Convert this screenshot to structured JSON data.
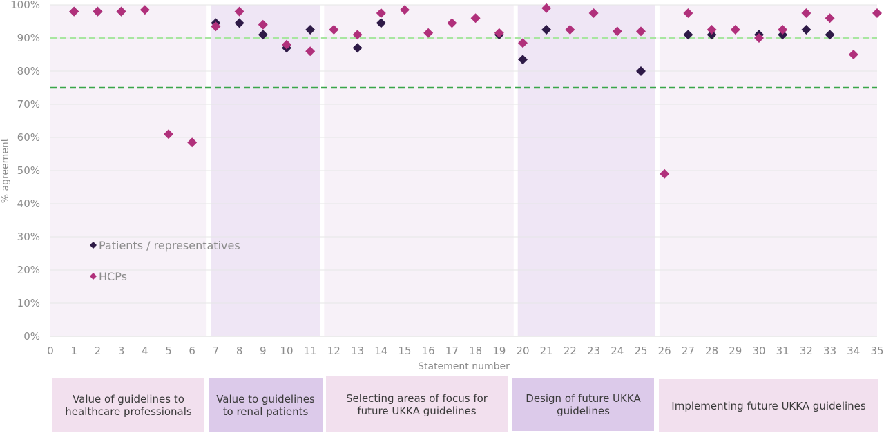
{
  "chart_data": {
    "type": "scatter",
    "xlabel": "Statement number",
    "ylabel": "% agreement",
    "xlim": [
      0,
      35
    ],
    "ylim": [
      0,
      100
    ],
    "x_ticks": [
      "0",
      "1",
      "2",
      "3",
      "4",
      "5",
      "6",
      "7",
      "8",
      "9",
      "10",
      "11",
      "12",
      "13",
      "14",
      "15",
      "16",
      "17",
      "18",
      "19",
      "20",
      "21",
      "22",
      "23",
      "24",
      "25",
      "26",
      "27",
      "28",
      "29",
      "30",
      "31",
      "32",
      "33",
      "34",
      "35"
    ],
    "y_ticks": [
      "0%",
      "10%",
      "20%",
      "30%",
      "40%",
      "50%",
      "60%",
      "70%",
      "80%",
      "90%",
      "100%"
    ],
    "legend_position": "left-middle",
    "series": [
      {
        "name": "Patients / representatives",
        "color": "#2e1a47",
        "marker": "diamond",
        "points": [
          [
            1,
            98
          ],
          [
            2,
            98
          ],
          [
            3,
            98
          ],
          [
            7,
            94.5
          ],
          [
            8,
            94.5
          ],
          [
            9,
            91
          ],
          [
            10,
            87
          ],
          [
            11,
            92.5
          ],
          [
            13,
            87
          ],
          [
            14,
            94.5
          ],
          [
            19,
            91
          ],
          [
            20,
            83.5
          ],
          [
            21,
            92.5
          ],
          [
            25,
            80
          ],
          [
            27,
            91
          ],
          [
            28,
            91
          ],
          [
            30,
            91
          ],
          [
            31,
            91
          ],
          [
            32,
            92.5
          ],
          [
            33,
            91
          ]
        ]
      },
      {
        "name": "HCPs",
        "color": "#b0307b",
        "marker": "diamond",
        "points": [
          [
            1,
            98
          ],
          [
            2,
            98
          ],
          [
            3,
            98
          ],
          [
            4,
            98.5
          ],
          [
            5,
            61
          ],
          [
            6,
            58.5
          ],
          [
            7,
            93.5
          ],
          [
            8,
            98
          ],
          [
            9,
            94
          ],
          [
            10,
            88
          ],
          [
            11,
            86
          ],
          [
            12,
            92.5
          ],
          [
            13,
            91
          ],
          [
            14,
            97.5
          ],
          [
            15,
            98.5
          ],
          [
            16,
            91.5
          ],
          [
            17,
            94.5
          ],
          [
            18,
            96
          ],
          [
            19,
            91.5
          ],
          [
            20,
            88.5
          ],
          [
            21,
            99
          ],
          [
            22,
            92.5
          ],
          [
            23,
            97.5
          ],
          [
            24,
            92
          ],
          [
            25,
            92
          ],
          [
            26,
            49
          ],
          [
            27,
            97.5
          ],
          [
            28,
            92.5
          ],
          [
            29,
            92.5
          ],
          [
            30,
            90
          ],
          [
            31,
            92.5
          ],
          [
            32,
            97.5
          ],
          [
            33,
            96
          ],
          [
            34,
            85
          ],
          [
            35,
            97.5
          ]
        ]
      }
    ],
    "reference_lines": [
      {
        "y": 90,
        "color": "#a8e6a0",
        "style": "dashed"
      },
      {
        "y": 75,
        "color": "#3aa64a",
        "style": "dashed"
      }
    ],
    "groups": [
      {
        "label": "Value of guidelines to healthcare professionals",
        "x_range": [
          0,
          6.7
        ],
        "band_color": "#f7f1f8",
        "box_color": "#f2e0ee"
      },
      {
        "label": "Value to guidelines to renal patients",
        "x_range": [
          6.7,
          11.5
        ],
        "band_color": "#efe6f5",
        "box_color": "#dccaea"
      },
      {
        "label": "Selecting areas of focus for future UKKA guidelines",
        "x_range": [
          11.5,
          19.7
        ],
        "band_color": "#f7f1f8",
        "box_color": "#f2e0ee"
      },
      {
        "label": "Design of future UKKA guidelines",
        "x_range": [
          19.7,
          25.7
        ],
        "band_color": "#efe6f5",
        "box_color": "#dccaea"
      },
      {
        "label": "Implementing future UKKA guidelines",
        "x_range": [
          25.7,
          35
        ],
        "band_color": "#f7f1f8",
        "box_color": "#f2e0ee"
      }
    ]
  }
}
